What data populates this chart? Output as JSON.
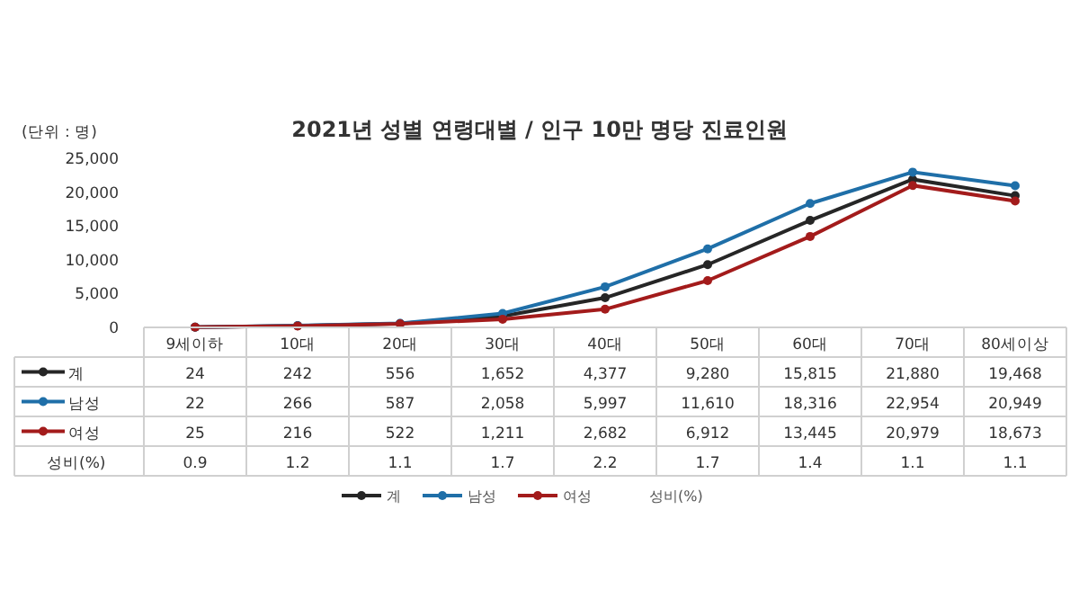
{
  "chart_data": {
    "type": "line",
    "title": "2021년 성별 연령대별 / 인구 10만 명당 진료인원",
    "ylabel": "(단위 : 명)",
    "categories": [
      "9세이하",
      "10대",
      "20대",
      "30대",
      "40대",
      "50대",
      "60대",
      "70대",
      "80세이상"
    ],
    "ylim": [
      0,
      25000
    ],
    "yticks": [
      {
        "value": 0,
        "label": "0"
      },
      {
        "value": 5000,
        "label": "5,000"
      },
      {
        "value": 10000,
        "label": "10,000"
      },
      {
        "value": 15000,
        "label": "15,000"
      },
      {
        "value": 20000,
        "label": "20,000"
      },
      {
        "value": 25000,
        "label": "25,000"
      }
    ],
    "series": [
      {
        "name": "계",
        "color": "#262626",
        "values": [
          24,
          242,
          556,
          1652,
          4377,
          9280,
          15815,
          21880,
          19468
        ],
        "value_labels": [
          "24",
          "242",
          "556",
          "1,652",
          "4,377",
          "9,280",
          "15,815",
          "21,880",
          "19,468"
        ]
      },
      {
        "name": "남성",
        "color": "#1f6fa8",
        "values": [
          22,
          266,
          587,
          2058,
          5997,
          11610,
          18316,
          22954,
          20949
        ],
        "value_labels": [
          "22",
          "266",
          "587",
          "2,058",
          "5,997",
          "11,610",
          "18,316",
          "22,954",
          "20,949"
        ]
      },
      {
        "name": "여성",
        "color": "#a31b1b",
        "values": [
          25,
          216,
          522,
          1211,
          2682,
          6912,
          13445,
          20979,
          18673
        ],
        "value_labels": [
          "25",
          "216",
          "522",
          "1,211",
          "2,682",
          "6,912",
          "13,445",
          "20,979",
          "18,673"
        ]
      }
    ],
    "annotations": [
      "성비(%)",
      "0.9",
      "1.2",
      "1.1",
      "1.7",
      "2.2",
      "1.7",
      "1.4",
      "1.1",
      "1.1"
    ],
    "marker": "circle",
    "line_style": "solid",
    "grid": false,
    "legend": "bottom",
    "data_labels": true
  }
}
